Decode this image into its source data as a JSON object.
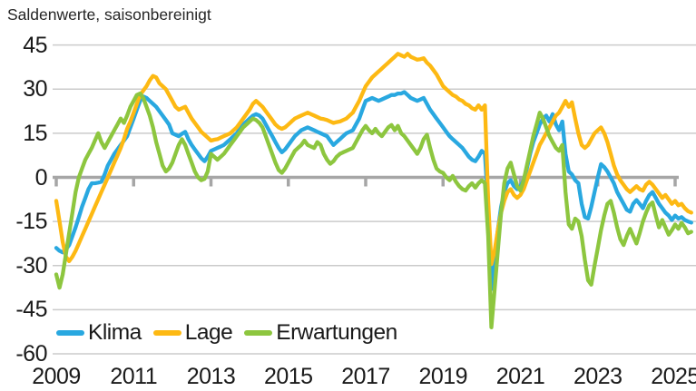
{
  "title": "Saldenwerte, saisonbereinigt",
  "colors": {
    "klima": "#29A8E0",
    "lage": "#FDB913",
    "erwartungen": "#8DC63F",
    "gridline": "#cbcbcb",
    "zero_axis": "#a6a6a6",
    "text": "#1a1a1a"
  },
  "chart_data": {
    "type": "line",
    "title": "Saldenwerte, saisonbereinigt",
    "x_start": "2009-01",
    "x_end": "2025-06",
    "frequency": "monthly",
    "x_tick_labels": [
      "2009",
      "2011",
      "2013",
      "2015",
      "2017",
      "2019",
      "2021",
      "2023",
      "2025"
    ],
    "y_ticks": [
      45,
      30,
      15,
      0,
      -15,
      -30,
      -45,
      -60
    ],
    "ylim": [
      -60,
      45
    ],
    "grid": true,
    "zero_line_emphasized": true,
    "legend_position": "bottom-left-inside",
    "series": [
      {
        "name": "Klima",
        "color": "#29A8E0",
        "values": [
          -24,
          -25,
          -25.5,
          -24.5,
          -23,
          -20,
          -17,
          -13.5,
          -10,
          -7,
          -4,
          -2,
          -2,
          -1.8,
          -1.5,
          1,
          4,
          6,
          8,
          9.5,
          11,
          12.5,
          14,
          17,
          20,
          23,
          26,
          27.5,
          27,
          26,
          25,
          24,
          22.5,
          21,
          19.5,
          18,
          15,
          14.5,
          14,
          14.8,
          15.5,
          13,
          11,
          9.5,
          8,
          6.5,
          5.5,
          7,
          9,
          9.5,
          10,
          10.5,
          11,
          12,
          13,
          14,
          15,
          16.5,
          18,
          19,
          20,
          21,
          21.5,
          21,
          20,
          18,
          16,
          14,
          12,
          10,
          8.5,
          9.5,
          11,
          12.5,
          14,
          15,
          16,
          16.5,
          17,
          16.5,
          16,
          15.5,
          15,
          14.5,
          14,
          12.5,
          11,
          12,
          13,
          14,
          15,
          15.5,
          16,
          18,
          20,
          23,
          26,
          26.5,
          27,
          26.5,
          26,
          26.5,
          27,
          27.5,
          28,
          28,
          28.5,
          28.5,
          29,
          28,
          27,
          26.5,
          26,
          26.5,
          27,
          25,
          23,
          21.5,
          20,
          18.5,
          17,
          15.5,
          14,
          13,
          12,
          11,
          10,
          8.5,
          7,
          6,
          5.5,
          7,
          9,
          8,
          -10,
          -38,
          -27,
          -18,
          -10,
          -5,
          -2,
          -1,
          -3,
          -4,
          -3,
          -1,
          3,
          8,
          12,
          15,
          18,
          20,
          21,
          19,
          21.5,
          18,
          16,
          19,
          8,
          2,
          1,
          -1,
          -2,
          -9,
          -13.5,
          -14,
          -10,
          -5,
          0,
          4.5,
          3.5,
          2,
          0,
          -2,
          -5,
          -7,
          -9,
          -11,
          -11.7,
          -9,
          -7.7,
          -9,
          -10.5,
          -8,
          -6,
          -5,
          -7,
          -9,
          -10.5,
          -12,
          -13,
          -14.5,
          -13,
          -14,
          -13.5,
          -14.5,
          -15,
          -15.4
        ]
      },
      {
        "name": "Lage",
        "color": "#FDB913",
        "values": [
          -8,
          -15,
          -22,
          -27,
          -28.5,
          -27,
          -25,
          -22.5,
          -20,
          -17.5,
          -15,
          -12.5,
          -10,
          -7.5,
          -5,
          -2.5,
          0,
          2.5,
          5,
          7.5,
          10,
          13,
          16.5,
          19,
          22,
          25,
          28,
          29.5,
          31,
          33,
          34.5,
          34,
          32,
          31,
          30,
          28,
          26,
          24,
          23,
          23.5,
          24,
          22,
          20,
          18.5,
          17,
          15.5,
          14.5,
          13.5,
          12.5,
          12.8,
          13,
          13.5,
          14,
          14.5,
          15,
          16,
          17,
          18.5,
          20,
          21.5,
          23,
          25,
          26,
          25,
          24,
          22.5,
          21,
          19.5,
          18,
          17,
          16.5,
          17,
          18,
          19,
          20,
          20.5,
          21,
          21.5,
          22,
          21.5,
          21,
          20.5,
          20,
          19.8,
          19.5,
          19,
          18.5,
          18.8,
          19,
          19.5,
          20,
          21,
          22,
          24,
          26,
          28.5,
          31,
          32.5,
          34,
          35,
          36,
          37,
          38,
          39,
          40,
          41,
          42,
          41.5,
          41,
          42,
          41,
          40.5,
          40,
          40.2,
          40.5,
          39,
          38,
          36.5,
          35,
          33,
          31,
          30,
          29,
          28,
          27.5,
          26.5,
          26,
          25,
          24.5,
          23.5,
          23,
          24.5,
          23,
          24.5,
          -8,
          -29.5,
          -25,
          -18,
          -12,
          -8,
          -5,
          -4,
          -6,
          -7,
          -6,
          -4,
          -1,
          2,
          5,
          8,
          11,
          13,
          15,
          17,
          19,
          21,
          22,
          24,
          26,
          24,
          25.5,
          20,
          15,
          11,
          10,
          11,
          13,
          15,
          16,
          17,
          15,
          12,
          8,
          4,
          1,
          -1,
          -2.5,
          -4,
          -5,
          -4,
          -3,
          -4,
          -4.5,
          -2.5,
          -1.5,
          -2.5,
          -4,
          -5.5,
          -7,
          -6,
          -7.5,
          -9,
          -8,
          -9.5,
          -9,
          -10.5,
          -11.5,
          -12
        ]
      },
      {
        "name": "Erwartungen",
        "color": "#8DC63F",
        "values": [
          -33,
          -37.5,
          -33,
          -26,
          -19,
          -12,
          -5,
          0,
          3,
          6,
          8,
          10,
          12.5,
          15,
          12,
          10,
          12,
          14,
          16,
          18,
          20,
          18.5,
          21,
          24,
          26,
          28,
          28.5,
          27,
          24,
          21,
          17,
          12,
          8,
          4,
          2,
          3,
          5,
          8,
          11,
          13,
          11,
          8,
          5,
          2,
          0,
          -1,
          -0.5,
          2,
          8,
          7,
          6,
          7,
          8,
          9.5,
          11,
          12.5,
          14,
          15.5,
          17,
          18,
          19,
          20,
          19.5,
          18.5,
          17,
          14,
          11,
          8,
          5,
          2.5,
          1.5,
          3,
          5,
          7,
          9,
          10,
          11,
          12.5,
          11,
          10.5,
          10,
          12,
          11,
          8,
          6,
          4.6,
          5.5,
          7,
          8,
          8.5,
          9,
          9.5,
          10,
          12,
          14,
          16,
          17.5,
          16,
          15,
          16.5,
          15,
          14,
          15.5,
          17,
          17.8,
          16,
          17.5,
          15,
          14,
          12.5,
          11,
          9.5,
          8,
          10,
          13,
          14.5,
          10,
          6,
          3,
          2,
          1.5,
          0,
          -1,
          0.5,
          -1.5,
          -3,
          -4,
          -4.5,
          -3,
          -2,
          -3.5,
          -2,
          -1,
          -2,
          -20,
          -51,
          -38,
          -25,
          -12,
          -2,
          3,
          5,
          1,
          -3,
          -4.5,
          -1,
          4,
          9,
          14,
          18,
          22,
          20,
          17,
          14,
          12,
          10,
          9,
          11,
          -5,
          -16,
          -17.5,
          -14,
          -15,
          -20,
          -28,
          -35,
          -36.5,
          -30,
          -24,
          -18,
          -13,
          -9,
          -8,
          -12,
          -17,
          -21,
          -23,
          -20,
          -17.5,
          -20,
          -22.5,
          -19,
          -15,
          -12,
          -9.5,
          -8.5,
          -13,
          -17,
          -14.5,
          -17,
          -19.5,
          -18,
          -16,
          -17.5,
          -15.5,
          -17,
          -19,
          -18.5
        ]
      }
    ]
  }
}
